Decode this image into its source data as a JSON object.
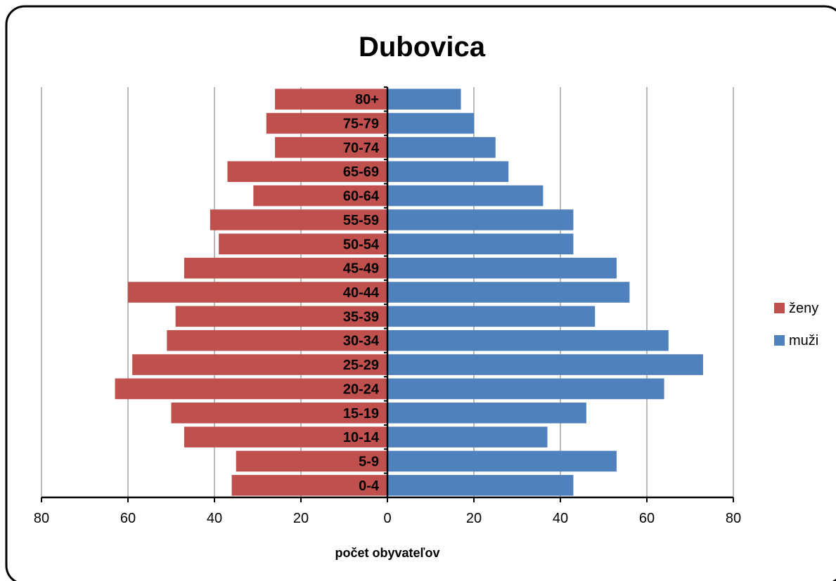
{
  "chart_data": {
    "type": "bar",
    "orientation": "horizontal",
    "layout": "population-pyramid",
    "title": "Dubovica",
    "xlabel": "počet obyvateľov",
    "xlim": [
      -80,
      80
    ],
    "x_ticks": [
      "80",
      "60",
      "40",
      "20",
      "0",
      "20",
      "40",
      "60",
      "80"
    ],
    "grid": true,
    "legend_position": "right",
    "categories": [
      "0-4",
      "5-9",
      "10-14",
      "15-19",
      "20-24",
      "25-29",
      "30-34",
      "35-39",
      "40-44",
      "45-49",
      "50-54",
      "55-59",
      "60-64",
      "65-69",
      "70-74",
      "75-79",
      "80+"
    ],
    "series": [
      {
        "name": "ženy",
        "side": "left",
        "color": "#c0504d",
        "values": [
          36,
          35,
          47,
          50,
          63,
          59,
          51,
          49,
          60,
          47,
          39,
          41,
          31,
          37,
          26,
          28,
          26
        ]
      },
      {
        "name": "muži",
        "side": "right",
        "color": "#4f81bd",
        "values": [
          43,
          53,
          37,
          46,
          64,
          73,
          65,
          48,
          56,
          53,
          43,
          43,
          36,
          28,
          25,
          20,
          17
        ]
      }
    ]
  }
}
